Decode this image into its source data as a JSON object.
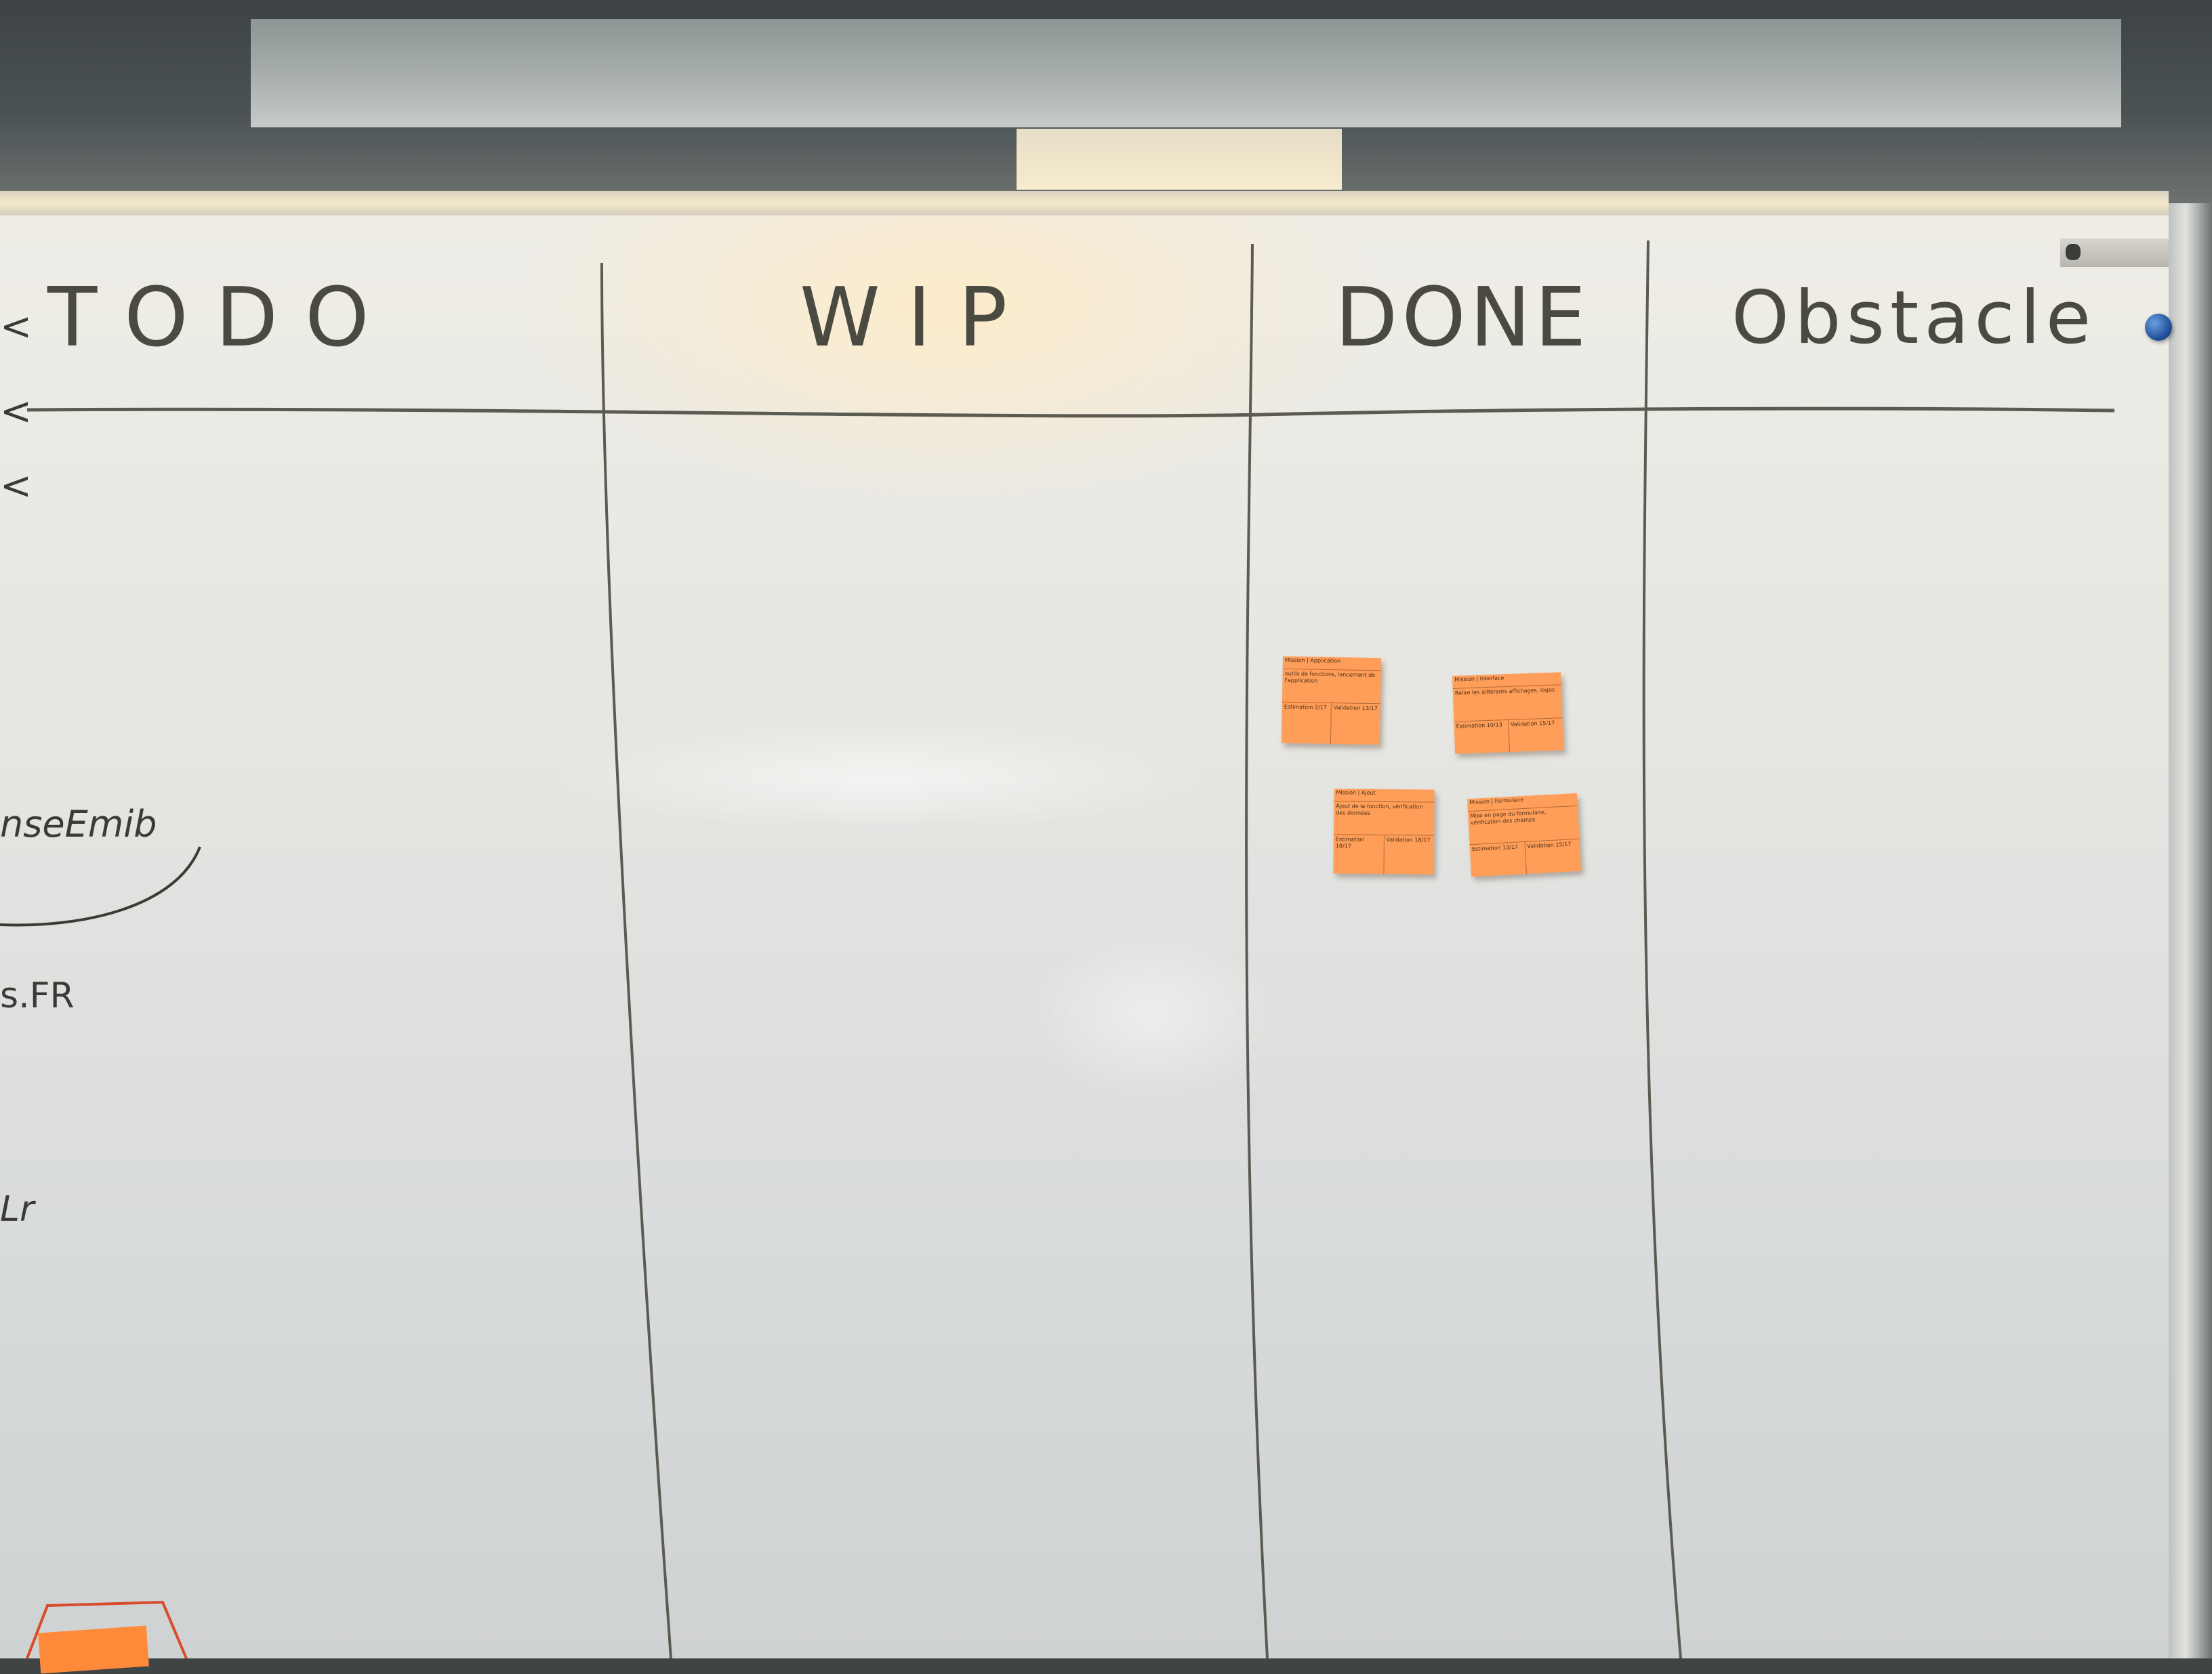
{
  "board": {
    "columns": [
      {
        "title": "TODO"
      },
      {
        "title": "WIP"
      },
      {
        "title": "DONE"
      },
      {
        "title": "Obstacle"
      }
    ],
    "left_margin_notes": [
      "nseEmib",
      "s.FR",
      "Lr"
    ],
    "left_margin_marks": [
      "<",
      "<",
      "<"
    ],
    "sticky_notes": [
      {
        "column": "DONE",
        "header": "Mission | Application",
        "description": "outils de fonctions, lancement de l'application",
        "left": "Estimation 2/17",
        "right": "Validation 13/17"
      },
      {
        "column": "DONE",
        "header": "Mission | Interface",
        "description": "Relire les différents affichages, logos",
        "left": "Estimation 10/13",
        "right": "Validation 15/17"
      },
      {
        "column": "DONE",
        "header": "Mission | Ajout",
        "description": "Ajout de la fonction, vérification des données",
        "left": "Estimation 18/17",
        "right": "Validation 18/17"
      },
      {
        "column": "DONE",
        "header": "Mission | Formulaire",
        "description": "Mise en page du formulaire, vérification des champs",
        "left": "Estimation 13/17",
        "right": "Validation 15/17"
      }
    ],
    "colors": {
      "sticky": "#ff9e58",
      "marker": "#4a4a42",
      "magnet": "#1f4f9a"
    }
  }
}
